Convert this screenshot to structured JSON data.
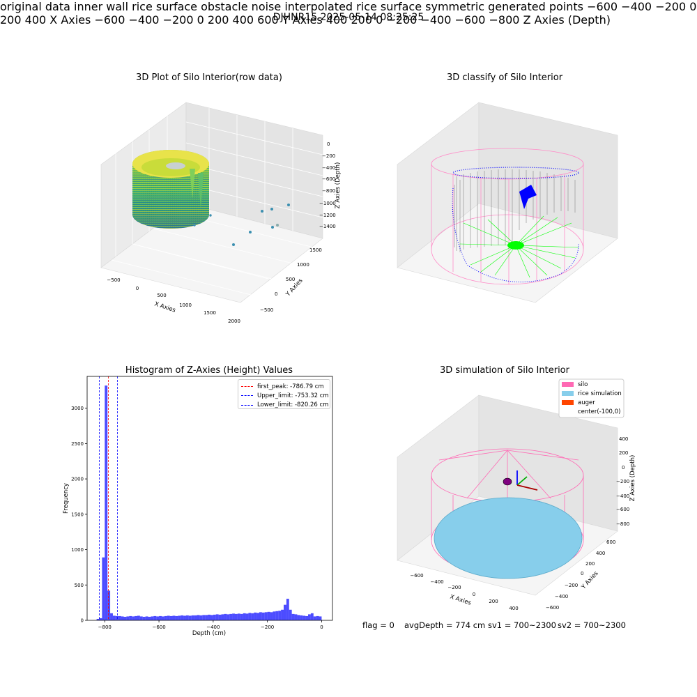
{
  "suptitle": "DJHNR15 2025-05-14 08:25:25",
  "panels": {
    "raw": {
      "title": "3D Plot of Silo Interior(row data)",
      "xlabel": "X Axies",
      "ylabel": "Y Axies",
      "zlabel": "Z Axies (Depth)",
      "xticks": [
        "−500",
        "0",
        "500",
        "1000",
        "1500",
        "2000"
      ],
      "yticks": [
        "−500",
        "0",
        "500",
        "1000",
        "1500"
      ],
      "zticks": [
        "0",
        "−200",
        "−400",
        "−600",
        "−800",
        "−1000",
        "−1200",
        "−1400"
      ]
    },
    "classify": {
      "title": "3D classify of Silo Interior",
      "xlabel": "X Axies",
      "ylabel": "Y Axies",
      "zlabel": "Z Axies (Depth)",
      "xticks": [
        "−600",
        "−400",
        "−200",
        "0",
        "200",
        "400"
      ],
      "yticks": [
        "−600",
        "−400",
        "−200",
        "0",
        "200",
        "400",
        "600"
      ],
      "zticks": [
        "400",
        "200",
        "0",
        "−200",
        "−400",
        "−600",
        "−800"
      ],
      "legend": [
        {
          "label": "original data",
          "color": "#b0b0b0"
        },
        {
          "label": "inner wall",
          "color": "#808080"
        },
        {
          "label": "rice surface",
          "color": "#00ff00"
        },
        {
          "label": "obstacle",
          "color": "#ff0000"
        },
        {
          "label": "noise",
          "color": "#0000ff"
        },
        {
          "label": "interpolated rice surface",
          "color": "#800080"
        },
        {
          "label": "symmetric generated points",
          "color": "#ffff00"
        }
      ]
    },
    "simulation": {
      "title": "3D simulation of Silo Interior",
      "xlabel": "X Axies",
      "ylabel": "Y Axies",
      "zlabel": "Z Axies (Depth)",
      "xticks": [
        "−600",
        "−400",
        "−200",
        "0",
        "200",
        "400"
      ],
      "yticks": [
        "−600",
        "−400",
        "−200",
        "0",
        "200",
        "400",
        "600"
      ],
      "zticks": [
        "400",
        "200",
        "0",
        "−200",
        "−400",
        "−600",
        "−800"
      ],
      "legend": [
        {
          "label": "silo",
          "color": "#ff69b4"
        },
        {
          "label": "rice simulation",
          "color": "#87ceeb"
        },
        {
          "label": "auger",
          "color": "#ff4500"
        },
        {
          "label": "center(-100,0)",
          "color": "#ffffff"
        }
      ]
    }
  },
  "status": {
    "flag": "flag = 0",
    "avgDepth": "avgDepth = 774 cm",
    "sv1": "sv1 = 700~2300",
    "sv2": "sv2 = 700~2300"
  },
  "chart_data": [
    {
      "type": "bar",
      "title": "Histogram of Z-Axies (Height) Values",
      "xlabel": "Depth (cm)",
      "ylabel": "Frequency",
      "xlim": [
        -865,
        40
      ],
      "ylim": [
        0,
        3450
      ],
      "bin_width": 10,
      "bar_color": "#0000ff",
      "x_ticks": [
        -800,
        -600,
        -400,
        -200,
        0
      ],
      "y_ticks": [
        0,
        500,
        1000,
        1500,
        2000,
        2500,
        3000
      ],
      "bins": [
        {
          "x": -825,
          "value": 20
        },
        {
          "x": -815,
          "value": 30
        },
        {
          "x": -805,
          "value": 890
        },
        {
          "x": -795,
          "value": 3320
        },
        {
          "x": -785,
          "value": 420
        },
        {
          "x": -775,
          "value": 100
        },
        {
          "x": -765,
          "value": 65
        },
        {
          "x": -755,
          "value": 60
        },
        {
          "x": -745,
          "value": 60
        },
        {
          "x": -735,
          "value": 55
        },
        {
          "x": -725,
          "value": 50
        },
        {
          "x": -715,
          "value": 55
        },
        {
          "x": -705,
          "value": 60
        },
        {
          "x": -695,
          "value": 55
        },
        {
          "x": -685,
          "value": 60
        },
        {
          "x": -675,
          "value": 65
        },
        {
          "x": -665,
          "value": 55
        },
        {
          "x": -655,
          "value": 50
        },
        {
          "x": -645,
          "value": 55
        },
        {
          "x": -635,
          "value": 50
        },
        {
          "x": -625,
          "value": 55
        },
        {
          "x": -615,
          "value": 60
        },
        {
          "x": -605,
          "value": 55
        },
        {
          "x": -595,
          "value": 60
        },
        {
          "x": -585,
          "value": 55
        },
        {
          "x": -575,
          "value": 60
        },
        {
          "x": -565,
          "value": 65
        },
        {
          "x": -555,
          "value": 60
        },
        {
          "x": -545,
          "value": 65
        },
        {
          "x": -535,
          "value": 60
        },
        {
          "x": -525,
          "value": 65
        },
        {
          "x": -515,
          "value": 70
        },
        {
          "x": -505,
          "value": 65
        },
        {
          "x": -495,
          "value": 70
        },
        {
          "x": -485,
          "value": 65
        },
        {
          "x": -475,
          "value": 70
        },
        {
          "x": -465,
          "value": 70
        },
        {
          "x": -455,
          "value": 75
        },
        {
          "x": -445,
          "value": 70
        },
        {
          "x": -435,
          "value": 75
        },
        {
          "x": -425,
          "value": 75
        },
        {
          "x": -415,
          "value": 80
        },
        {
          "x": -405,
          "value": 75
        },
        {
          "x": -395,
          "value": 80
        },
        {
          "x": -385,
          "value": 85
        },
        {
          "x": -375,
          "value": 80
        },
        {
          "x": -365,
          "value": 85
        },
        {
          "x": -355,
          "value": 90
        },
        {
          "x": -345,
          "value": 85
        },
        {
          "x": -335,
          "value": 90
        },
        {
          "x": -325,
          "value": 95
        },
        {
          "x": -315,
          "value": 90
        },
        {
          "x": -305,
          "value": 95
        },
        {
          "x": -295,
          "value": 90
        },
        {
          "x": -285,
          "value": 100
        },
        {
          "x": -275,
          "value": 95
        },
        {
          "x": -265,
          "value": 105
        },
        {
          "x": -255,
          "value": 100
        },
        {
          "x": -245,
          "value": 110
        },
        {
          "x": -235,
          "value": 105
        },
        {
          "x": -225,
          "value": 115
        },
        {
          "x": -215,
          "value": 110
        },
        {
          "x": -205,
          "value": 115
        },
        {
          "x": -195,
          "value": 120
        },
        {
          "x": -185,
          "value": 115
        },
        {
          "x": -175,
          "value": 125
        },
        {
          "x": -165,
          "value": 130
        },
        {
          "x": -155,
          "value": 135
        },
        {
          "x": -145,
          "value": 150
        },
        {
          "x": -135,
          "value": 220
        },
        {
          "x": -125,
          "value": 305
        },
        {
          "x": -115,
          "value": 150
        },
        {
          "x": -105,
          "value": 90
        },
        {
          "x": -95,
          "value": 85
        },
        {
          "x": -85,
          "value": 75
        },
        {
          "x": -75,
          "value": 70
        },
        {
          "x": -65,
          "value": 65
        },
        {
          "x": -55,
          "value": 60
        },
        {
          "x": -45,
          "value": 85
        },
        {
          "x": -35,
          "value": 100
        },
        {
          "x": -25,
          "value": 55
        },
        {
          "x": -15,
          "value": 60
        },
        {
          "x": -5,
          "value": 55
        }
      ],
      "vlines": [
        {
          "label": "first_peak: -786.79 cm",
          "x": -786.79,
          "color": "#ff0000"
        },
        {
          "label": "Upper_limit: -753.32 cm",
          "x": -753.32,
          "color": "#0000ff"
        },
        {
          "label": "Lower_limit: -820.26 cm",
          "x": -820.26,
          "color": "#0000ff"
        }
      ]
    }
  ]
}
